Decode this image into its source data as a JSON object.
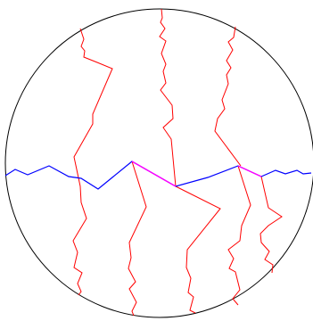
{
  "colors": {
    "background": "#ffffff",
    "circle": "#000000",
    "red_paths": "#ff0000",
    "blue_path": "#0000ff",
    "magenta_segments": "#ff00ff"
  }
}
